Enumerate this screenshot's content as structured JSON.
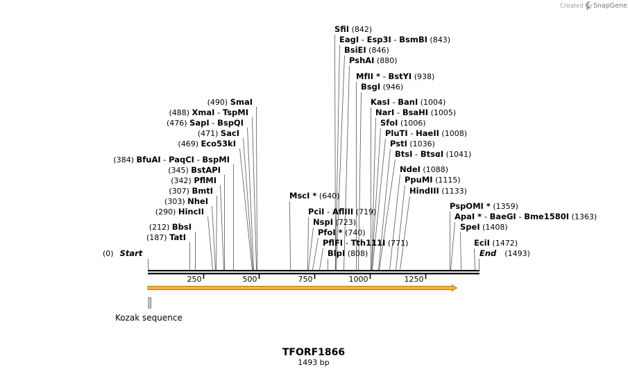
{
  "credit": {
    "prefix": "Created by",
    "brand": "SnapGene"
  },
  "sequence": {
    "name": "TFORF1866",
    "length_label": "1493 bp",
    "length": 1493
  },
  "ticks": [
    250,
    500,
    750,
    1000,
    1250
  ],
  "ends": {
    "start": {
      "label": "Start",
      "position": 0
    },
    "end": {
      "label": "End",
      "position": 1493
    }
  },
  "sites": [
    {
      "parts": [
        "SfiI"
      ],
      "pos_label": "(842)",
      "cut": 842
    },
    {
      "parts": [
        "EagI",
        "Esp3I",
        "BsmBI"
      ],
      "pos_label": "(843)",
      "cut": 843
    },
    {
      "parts": [
        "BsiEI"
      ],
      "pos_label": "(846)",
      "cut": 846
    },
    {
      "parts": [
        "PshAI"
      ],
      "pos_label": "(880)",
      "cut": 880
    },
    {
      "parts": [
        "MfII *",
        "BstYI"
      ],
      "pos_label": "(938)",
      "cut": 938
    },
    {
      "parts": [
        "BsgI"
      ],
      "pos_label": "(946)",
      "cut": 946
    },
    {
      "parts": [
        "KasI",
        "BanI"
      ],
      "pos_label": "(1004)",
      "cut": 1004
    },
    {
      "parts": [
        "NarI",
        "BsaHI"
      ],
      "pos_label": "(1005)",
      "cut": 1005
    },
    {
      "parts": [
        "SfoI"
      ],
      "pos_label": "(1006)",
      "cut": 1006
    },
    {
      "parts": [
        "PluTI",
        "HaeII"
      ],
      "pos_label": "(1008)",
      "cut": 1008
    },
    {
      "parts": [
        "PstI"
      ],
      "pos_label": "(1036)",
      "cut": 1036
    },
    {
      "parts": [
        "BtsI",
        "BtsαI"
      ],
      "pos_label": "(1041)",
      "cut": 1041
    },
    {
      "parts": [
        "NdeI"
      ],
      "pos_label": "(1088)",
      "cut": 1088
    },
    {
      "parts": [
        "PpuMI"
      ],
      "pos_label": "(1115)",
      "cut": 1115
    },
    {
      "parts": [
        "HindIII"
      ],
      "pos_label": "(1133)",
      "cut": 1133
    },
    {
      "parts": [
        "MscI *"
      ],
      "pos_label": "(640)",
      "cut": 640
    },
    {
      "parts": [
        "PciI",
        "AflIII"
      ],
      "pos_label": "(719)",
      "cut": 719
    },
    {
      "parts": [
        "NspI"
      ],
      "pos_label": "(723)",
      "cut": 723
    },
    {
      "parts": [
        "PfoI *"
      ],
      "pos_label": "(740)",
      "cut": 740
    },
    {
      "parts": [
        "PflFI",
        "Tth111I"
      ],
      "pos_label": "(771)",
      "cut": 771
    },
    {
      "parts": [
        "BlpI"
      ],
      "pos_label": "(808)",
      "cut": 808
    },
    {
      "parts": [
        "PspOMI *"
      ],
      "pos_label": "(1359)",
      "cut": 1359
    },
    {
      "parts": [
        "ApaI *",
        "BaeGI",
        "Bme1580I"
      ],
      "pos_label": "(1363)",
      "cut": 1363
    },
    {
      "parts": [
        "SpeI"
      ],
      "pos_label": "(1408)",
      "cut": 1408
    },
    {
      "parts": [
        "EciI"
      ],
      "pos_label": "(1472)",
      "cut": 1472
    },
    {
      "parts": [
        "SmaI"
      ],
      "pos_label": "(490)",
      "cut": 490
    },
    {
      "parts": [
        "XmaI",
        "TspMI"
      ],
      "pos_label": "(488)",
      "cut": 488
    },
    {
      "parts": [
        "SapI",
        "BspQI"
      ],
      "pos_label": "(476)",
      "cut": 476
    },
    {
      "parts": [
        "SacI"
      ],
      "pos_label": "(471)",
      "cut": 471
    },
    {
      "parts": [
        "Eco53kI"
      ],
      "pos_label": "(469)",
      "cut": 469
    },
    {
      "parts": [
        "BfuAI",
        "PaqCI",
        "BspMI"
      ],
      "pos_label": "(384)",
      "cut": 384
    },
    {
      "parts": [
        "BstAPI"
      ],
      "pos_label": "(345)",
      "cut": 345
    },
    {
      "parts": [
        "PflMI"
      ],
      "pos_label": "(342)",
      "cut": 342
    },
    {
      "parts": [
        "BmtI"
      ],
      "pos_label": "(307)",
      "cut": 307
    },
    {
      "parts": [
        "NheI"
      ],
      "pos_label": "(303)",
      "cut": 303
    },
    {
      "parts": [
        "HincII"
      ],
      "pos_label": "(290)",
      "cut": 290
    },
    {
      "parts": [
        "BbsI"
      ],
      "pos_label": "(212)",
      "cut": 212
    },
    {
      "parts": [
        "TatI"
      ],
      "pos_label": "(187)",
      "cut": 187
    }
  ],
  "features": [
    {
      "name": "orf",
      "label": "",
      "start": 1,
      "end": 1391,
      "color": "#f5a623"
    },
    {
      "name": "kozak",
      "label": "Kozak sequence",
      "start": 1,
      "end": 12,
      "color": "#c9c9c9"
    }
  ],
  "colors": {
    "backbone": "#000000",
    "orf_fill": "#f7b23b",
    "orf_stroke": "#b07a10",
    "kozak_fill": "#d5d5d5"
  }
}
